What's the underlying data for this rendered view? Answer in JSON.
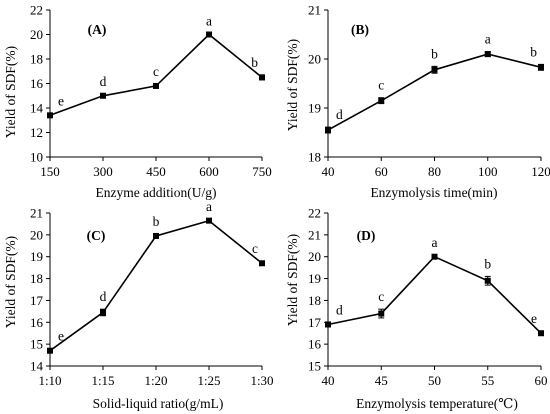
{
  "chart_data": [
    {
      "type": "line",
      "panel_label": "(A)",
      "xlabel": "Enzyme addition(U/g)",
      "ylabel": "Yield of SDF(%)",
      "x": [
        150,
        300,
        450,
        600,
        750
      ],
      "x_tick_labels": [
        "150",
        "300",
        "450",
        "600",
        "750"
      ],
      "y_ticks": [
        10,
        12,
        14,
        16,
        18,
        20,
        22
      ],
      "xlim": [
        150,
        750
      ],
      "ylim": [
        10,
        22
      ],
      "values": [
        13.4,
        15.0,
        15.8,
        20.0,
        16.5
      ],
      "errors": [
        0.15,
        0.15,
        0.15,
        0.1,
        0.2
      ],
      "significance": [
        "e",
        "d",
        "c",
        "a",
        "b"
      ]
    },
    {
      "type": "line",
      "panel_label": "(B)",
      "xlabel": "Enzymolysis time(min)",
      "ylabel": "Yield of SDF(%)",
      "x": [
        40,
        60,
        80,
        100,
        120
      ],
      "x_tick_labels": [
        "40",
        "60",
        "80",
        "100",
        "120"
      ],
      "y_ticks": [
        18,
        19,
        20,
        21
      ],
      "xlim": [
        40,
        120
      ],
      "ylim": [
        18,
        21
      ],
      "values": [
        18.55,
        19.15,
        19.78,
        20.1,
        19.83
      ],
      "errors": [
        0.06,
        0.06,
        0.07,
        0.05,
        0.06
      ],
      "significance": [
        "d",
        "c",
        "b",
        "a",
        "b"
      ]
    },
    {
      "type": "line",
      "panel_label": "(C)",
      "xlabel": "Solid-liquid ratio(g/mL)",
      "ylabel": "Yield of SDF(%)",
      "x": [
        1,
        2,
        3,
        4,
        5
      ],
      "x_tick_labels": [
        "1:10",
        "1:15",
        "1:20",
        "1:25",
        "1:30"
      ],
      "y_ticks": [
        14,
        15,
        16,
        17,
        18,
        19,
        20,
        21
      ],
      "xlim": [
        1,
        5
      ],
      "ylim": [
        14,
        21
      ],
      "values": [
        14.7,
        16.45,
        19.95,
        20.65,
        18.7
      ],
      "errors": [
        0.1,
        0.15,
        0.1,
        0.08,
        0.1
      ],
      "significance": [
        "e",
        "d",
        "b",
        "a",
        "c"
      ]
    },
    {
      "type": "line",
      "panel_label": "(D)",
      "xlabel": "Enzymolysis temperature(℃)",
      "ylabel": "Yield of SDF(%)",
      "x": [
        40,
        45,
        50,
        55,
        60
      ],
      "x_tick_labels": [
        "40",
        "45",
        "50",
        "55",
        "60"
      ],
      "y_ticks": [
        15,
        16,
        17,
        18,
        19,
        20,
        21,
        22
      ],
      "xlim": [
        40,
        60
      ],
      "ylim": [
        15,
        22
      ],
      "values": [
        16.9,
        17.4,
        20.0,
        18.9,
        16.5
      ],
      "errors": [
        0.08,
        0.2,
        0.08,
        0.2,
        0.1
      ],
      "significance": [
        "d",
        "c",
        "a",
        "b",
        "e"
      ]
    }
  ]
}
